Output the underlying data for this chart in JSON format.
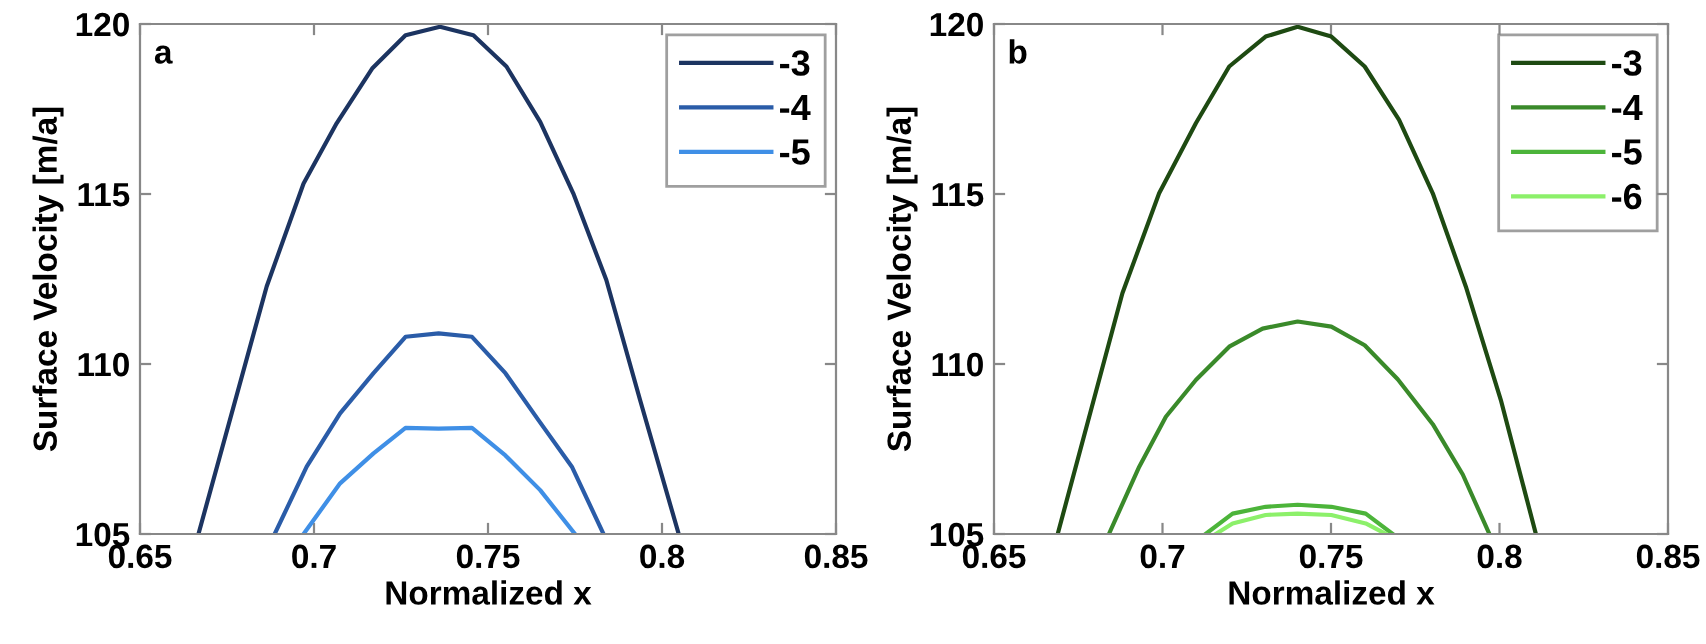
{
  "chart_data": [
    {
      "type": "line",
      "title": "a",
      "xlabel": "Normalized x",
      "ylabel": "Surface Velocity [m/a]",
      "xlim": [
        0.65,
        0.85
      ],
      "xticks": [
        0.65,
        0.7,
        0.75,
        0.8,
        0.85
      ],
      "ylim": [
        105,
        120
      ],
      "yticks": [
        105,
        110,
        115,
        120
      ],
      "legend": "top right",
      "grid": false,
      "series": [
        {
          "name": "-3",
          "color": "#1c3461",
          "x": [
            0.6668,
            0.6864,
            0.697,
            0.7065,
            0.7167,
            0.7263,
            0.7362,
            0.7458,
            0.7553,
            0.765,
            0.7745,
            0.784,
            0.7937,
            0.8048
          ],
          "values": [
            105.0,
            112.28,
            115.31,
            117.08,
            118.69,
            119.67,
            119.92,
            119.67,
            118.75,
            117.12,
            115.02,
            112.47,
            108.94,
            105.0
          ]
        },
        {
          "name": "-4",
          "color": "#2a5ca8",
          "x": [
            0.6887,
            0.6979,
            0.7075,
            0.7171,
            0.7263,
            0.7358,
            0.7454,
            0.755,
            0.7645,
            0.7741,
            0.7832
          ],
          "values": [
            105.0,
            106.98,
            108.55,
            109.73,
            110.8,
            110.9,
            110.8,
            109.73,
            108.35,
            106.98,
            105.0
          ]
        },
        {
          "name": "-5",
          "color": "#3f8fe6",
          "x": [
            0.697,
            0.7075,
            0.7171,
            0.7263,
            0.7358,
            0.7454,
            0.755,
            0.765,
            0.775
          ],
          "values": [
            105.0,
            106.49,
            107.37,
            108.12,
            108.1,
            108.12,
            107.31,
            106.29,
            105.0
          ]
        }
      ]
    },
    {
      "type": "line",
      "title": "b",
      "xlabel": "Normalized x",
      "ylabel": "Surface Velocity [m/a]",
      "xlim": [
        0.65,
        0.85
      ],
      "xticks": [
        0.65,
        0.7,
        0.75,
        0.8,
        0.85
      ],
      "ylim": [
        105,
        120
      ],
      "yticks": [
        105,
        110,
        115,
        120
      ],
      "legend": "top right",
      "grid": false,
      "series": [
        {
          "name": "-3",
          "color": "#1e4a12",
          "x": [
            0.6689,
            0.6881,
            0.699,
            0.7099,
            0.7198,
            0.7306,
            0.7401,
            0.7501,
            0.76,
            0.7702,
            0.7802,
            0.79,
            0.8004,
            0.8108
          ],
          "values": [
            105.0,
            112.08,
            115.02,
            117.08,
            118.75,
            119.63,
            119.92,
            119.63,
            118.75,
            117.18,
            115.02,
            112.28,
            108.94,
            105.0
          ]
        },
        {
          "name": "-4",
          "color": "#3a8a2a",
          "x": [
            0.6841,
            0.6931,
            0.701,
            0.7099,
            0.7198,
            0.7297,
            0.7401,
            0.7501,
            0.76,
            0.7698,
            0.7802,
            0.7891,
            0.797
          ],
          "values": [
            105.0,
            106.98,
            108.45,
            109.53,
            110.51,
            111.04,
            111.25,
            111.1,
            110.55,
            109.55,
            108.23,
            106.75,
            105.0
          ]
        },
        {
          "name": "-5",
          "color": "#4cb43a",
          "x": [
            0.7128,
            0.7208,
            0.7306,
            0.7401,
            0.7501,
            0.7603,
            0.7683
          ],
          "values": [
            105.0,
            105.6,
            105.8,
            105.86,
            105.8,
            105.6,
            105.0
          ]
        },
        {
          "name": "-6",
          "color": "#8cf06a",
          "x": [
            0.7158,
            0.7208,
            0.7306,
            0.7401,
            0.7501,
            0.7603,
            0.7663
          ],
          "values": [
            105.0,
            105.31,
            105.56,
            105.6,
            105.56,
            105.31,
            105.0
          ]
        }
      ]
    }
  ]
}
